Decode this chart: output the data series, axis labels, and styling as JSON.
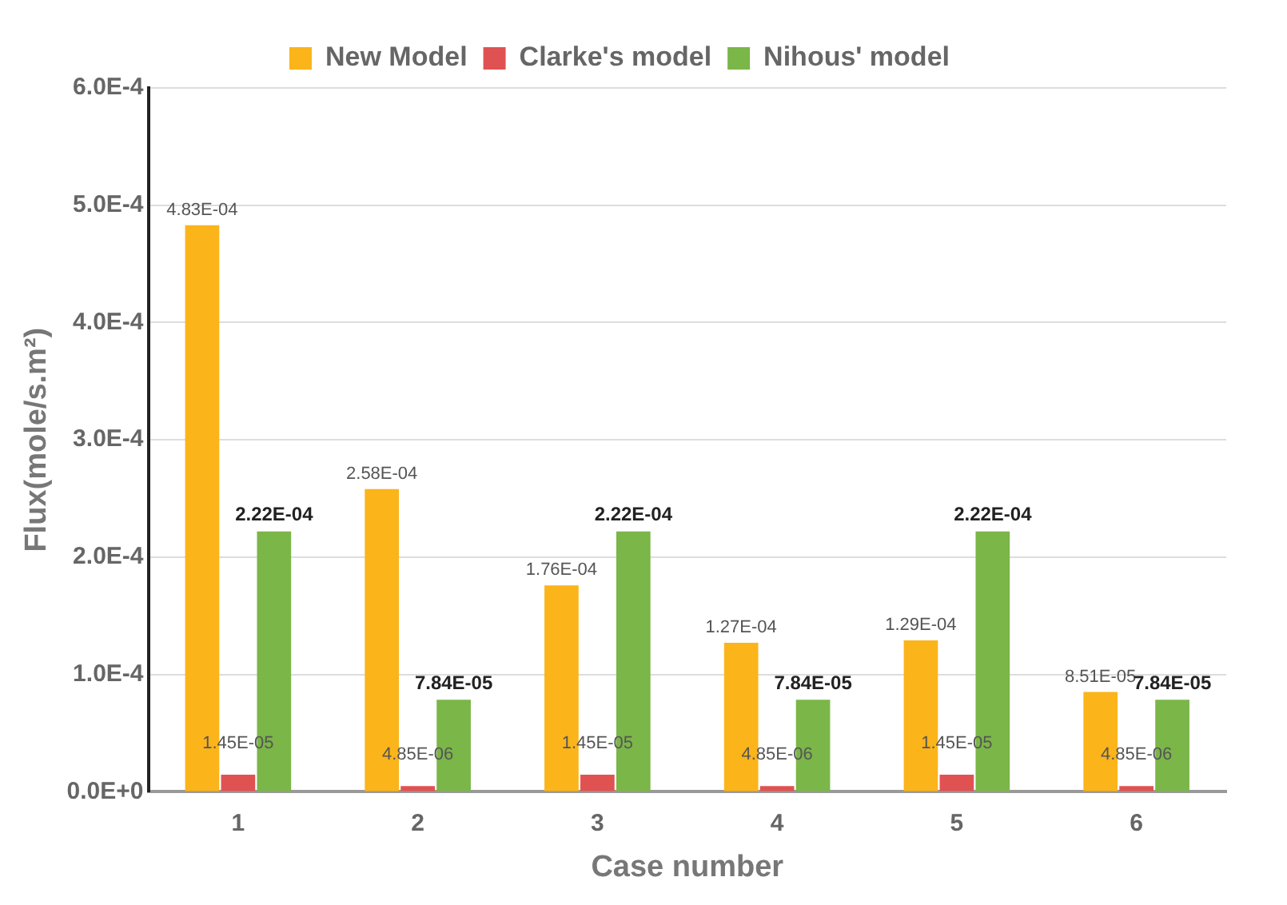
{
  "chart_data": {
    "type": "bar",
    "xlabel": "Case number",
    "ylabel": "Flux(mole/s.m²)",
    "categories": [
      "1",
      "2",
      "3",
      "4",
      "5",
      "6"
    ],
    "series": [
      {
        "name": "New Model",
        "color": "#fbb41a",
        "values": [
          0.000483,
          0.000258,
          0.000176,
          0.000127,
          0.000129,
          8.51e-05
        ],
        "value_labels": [
          "4.83E-04",
          "2.58E-04",
          "1.76E-04",
          "1.27E-04",
          "1.29E-04",
          "8.51E-05"
        ]
      },
      {
        "name": "Clarke's model",
        "color": "#e05252",
        "values": [
          1.45e-05,
          4.85e-06,
          1.45e-05,
          4.85e-06,
          1.45e-05,
          4.85e-06
        ],
        "value_labels": [
          "1.45E-05",
          "4.85E-06",
          "1.45E-05",
          "4.85E-06",
          "1.45E-05",
          "4.85E-06"
        ]
      },
      {
        "name": "Nihous' model",
        "color": "#7ab648",
        "values": [
          0.000222,
          7.84e-05,
          0.000222,
          7.84e-05,
          0.000222,
          7.84e-05
        ],
        "value_labels": [
          "2.22E-04",
          "7.84E-05",
          "2.22E-04",
          "7.84E-05",
          "2.22E-04",
          "7.84E-05"
        ]
      }
    ],
    "ylim": [
      0,
      0.0006
    ],
    "yticks": [
      {
        "value": 0,
        "label": "0.0E+0"
      },
      {
        "value": 0.0001,
        "label": "1.0E-4"
      },
      {
        "value": 0.0002,
        "label": "2.0E-4"
      },
      {
        "value": 0.0003,
        "label": "3.0E-4"
      },
      {
        "value": 0.0004,
        "label": "4.0E-4"
      },
      {
        "value": 0.0005,
        "label": "5.0E-4"
      },
      {
        "value": 0.0006,
        "label": "6.0E-4"
      }
    ],
    "grid": "y",
    "legend": "top"
  }
}
